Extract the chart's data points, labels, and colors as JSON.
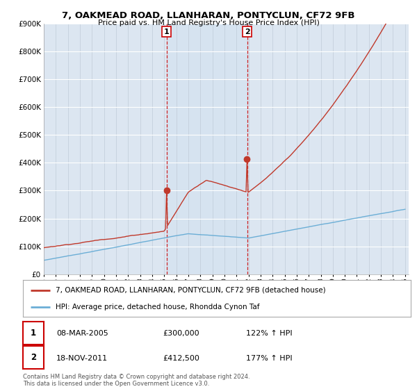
{
  "title": "7, OAKMEAD ROAD, LLANHARAN, PONTYCLUN, CF72 9FB",
  "subtitle": "Price paid vs. HM Land Registry's House Price Index (HPI)",
  "background_color": "#ffffff",
  "plot_bg_color": "#dce6f1",
  "grid_color": "#c8d8e8",
  "red_line_color": "#c0392b",
  "blue_line_color": "#6baed6",
  "legend_line1": "7, OAKMEAD ROAD, LLANHARAN, PONTYCLUN, CF72 9FB (detached house)",
  "legend_line2": "HPI: Average price, detached house, Rhondda Cynon Taf",
  "table_row1": [
    "1",
    "08-MAR-2005",
    "£300,000",
    "122% ↑ HPI"
  ],
  "table_row2": [
    "2",
    "18-NOV-2011",
    "£412,500",
    "177% ↑ HPI"
  ],
  "footer": "Contains HM Land Registry data © Crown copyright and database right 2024.\nThis data is licensed under the Open Government Licence v3.0.",
  "ylim": [
    0,
    900000
  ],
  "yticks": [
    0,
    100000,
    200000,
    300000,
    400000,
    500000,
    600000,
    700000,
    800000,
    900000
  ],
  "sale1_year": 2005.2,
  "sale1_price": 300000,
  "sale2_year": 2011.9,
  "sale2_price": 412500,
  "start_year": 1995,
  "end_year": 2025
}
